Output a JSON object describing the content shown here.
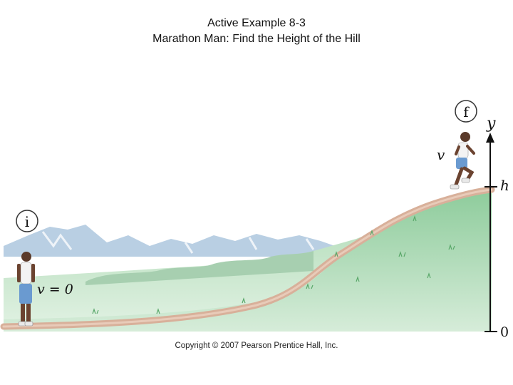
{
  "title": {
    "line1": "Active Example 8-3",
    "line2": "Marathon Man: Find the Height of the Hill"
  },
  "diagram": {
    "initial_marker": "i",
    "final_marker": "f",
    "initial_velocity_label": "v = 0",
    "final_velocity_label": "v",
    "axis_label_y": "y",
    "height_label": "h",
    "zero_label": "0"
  },
  "copyright": "Copyright © 2007 Pearson Prentice Hall, Inc.",
  "colors": {
    "sky_mountains": "#c8d8e8",
    "grass_light": "#cfe6cf",
    "grass_dark": "#7fc08f",
    "path": "#d9b59e",
    "shorts": "#6a9ad0"
  }
}
